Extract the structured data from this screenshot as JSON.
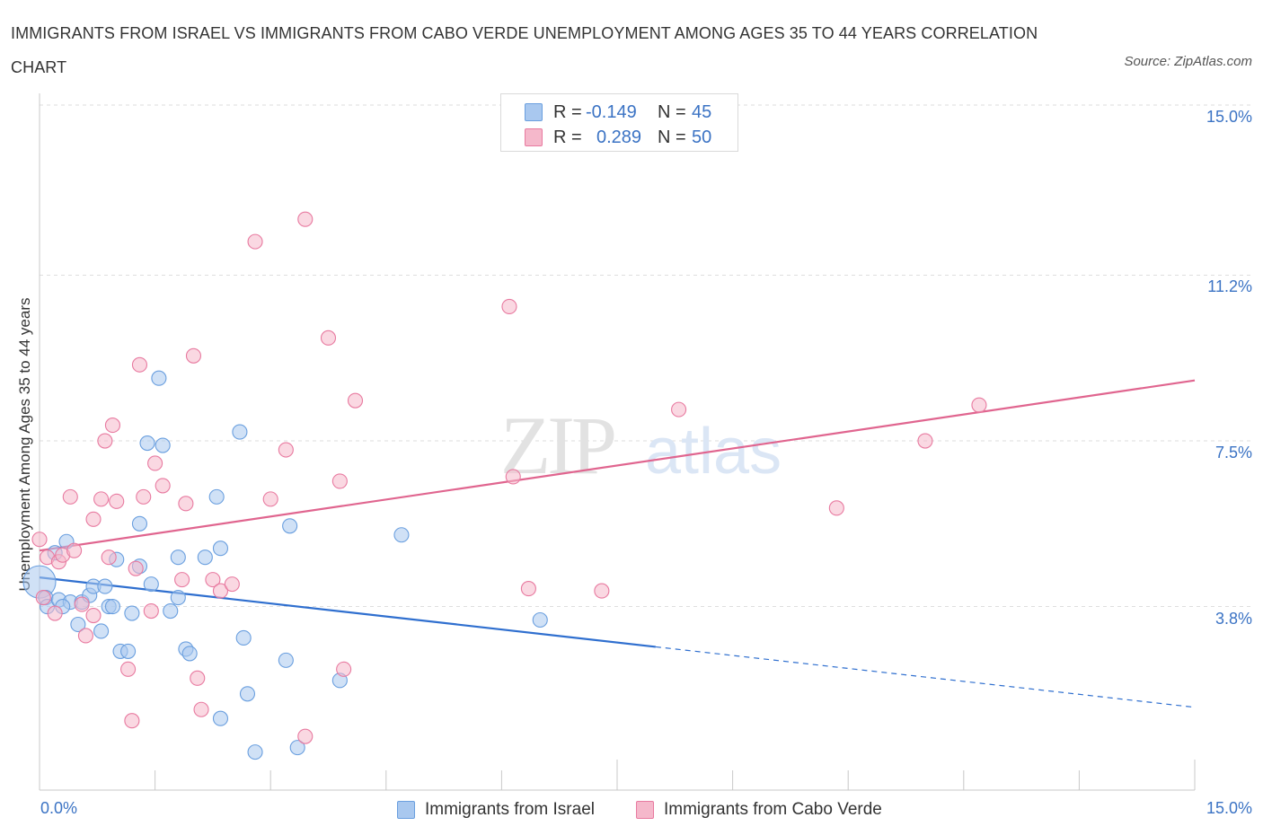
{
  "header": {
    "title": "IMMIGRANTS FROM ISRAEL VS IMMIGRANTS FROM CABO VERDE UNEMPLOYMENT AMONG AGES 35 TO 44 YEARS CORRELATION CHART",
    "source": "Source: ZipAtlas.com"
  },
  "legend": {
    "r_label": "R =",
    "n_label": "N =",
    "israel": {
      "r": "-0.149",
      "n": "45",
      "color": "#a9c8ef"
    },
    "caboverde": {
      "r": "0.289",
      "n": "50",
      "color": "#f5b8cb"
    }
  },
  "watermark": {
    "zip": "ZIP",
    "atlas": "atlas"
  },
  "bottom_legend": {
    "israel_label": "Immigrants from Israel",
    "caboverde_label": "Immigrants from Cabo Verde"
  },
  "chart_data": {
    "type": "scatter",
    "title": "IMMIGRANTS FROM ISRAEL VS IMMIGRANTS FROM CABO VERDE UNEMPLOYMENT AMONG AGES 35 TO 44 YEARS CORRELATION CHART",
    "xlabel": "",
    "ylabel": "Unemployment Among Ages 35 to 44 years",
    "xlim": [
      0,
      15
    ],
    "ylim": [
      0,
      15
    ],
    "x_tick_labels": {
      "min": "0.0%",
      "max": "15.0%"
    },
    "y_ticks": [
      {
        "value": 3.8,
        "label": "3.8%"
      },
      {
        "value": 7.5,
        "label": "7.5%"
      },
      {
        "value": 11.2,
        "label": "11.2%"
      },
      {
        "value": 15.0,
        "label": "15.0%"
      }
    ],
    "series": [
      {
        "name": "Immigrants from Israel",
        "color": "#6a9fdf",
        "fill": "#a9c8ef",
        "trend": {
          "x0": 0.0,
          "y0": 4.75,
          "x1": 8.0,
          "y1": 3.2,
          "dash_x1": 15.0,
          "dash_y1": 1.85
        },
        "points": [
          [
            0.0,
            4.65,
            3
          ],
          [
            0.08,
            4.3,
            1
          ],
          [
            0.1,
            4.1,
            1
          ],
          [
            0.25,
            4.25,
            1
          ],
          [
            0.35,
            5.55,
            1
          ],
          [
            0.4,
            4.2,
            1
          ],
          [
            0.5,
            3.7,
            1
          ],
          [
            0.55,
            4.2,
            1
          ],
          [
            0.65,
            4.35,
            1
          ],
          [
            0.7,
            4.55,
            1
          ],
          [
            0.8,
            3.55,
            1
          ],
          [
            0.85,
            4.55,
            1
          ],
          [
            0.9,
            4.1,
            1
          ],
          [
            0.95,
            4.1,
            1
          ],
          [
            1.0,
            5.15,
            1
          ],
          [
            1.05,
            3.1,
            1
          ],
          [
            1.15,
            3.1,
            1
          ],
          [
            1.2,
            3.95,
            1
          ],
          [
            1.3,
            5.0,
            1
          ],
          [
            1.3,
            5.95,
            1
          ],
          [
            1.4,
            7.75,
            1
          ],
          [
            1.45,
            4.6,
            1
          ],
          [
            1.6,
            7.7,
            1
          ],
          [
            1.55,
            9.2,
            1
          ],
          [
            1.7,
            4.0,
            1
          ],
          [
            1.8,
            5.2,
            1
          ],
          [
            1.8,
            4.3,
            1
          ],
          [
            1.9,
            3.15,
            1
          ],
          [
            1.95,
            3.05,
            1
          ],
          [
            2.15,
            5.2,
            1
          ],
          [
            2.3,
            6.55,
            1
          ],
          [
            2.35,
            1.6,
            1
          ],
          [
            2.35,
            5.4,
            1
          ],
          [
            2.6,
            8.0,
            1
          ],
          [
            2.65,
            3.4,
            1
          ],
          [
            2.7,
            2.15,
            1
          ],
          [
            2.8,
            0.85,
            1
          ],
          [
            3.2,
            2.9,
            1
          ],
          [
            3.25,
            5.9,
            1
          ],
          [
            3.35,
            0.95,
            1
          ],
          [
            3.9,
            2.45,
            1
          ],
          [
            4.7,
            5.7,
            1
          ],
          [
            6.5,
            3.8,
            1
          ],
          [
            0.2,
            5.3,
            1
          ],
          [
            0.3,
            4.1,
            1
          ]
        ]
      },
      {
        "name": "Immigrants from Cabo Verde",
        "color": "#e87aa0",
        "fill": "#f5b8cb",
        "trend": {
          "x0": 0.0,
          "y0": 5.35,
          "x1": 15.0,
          "y1": 9.15
        },
        "points": [
          [
            0.0,
            5.6,
            1
          ],
          [
            0.05,
            4.3,
            1
          ],
          [
            0.1,
            5.2,
            1
          ],
          [
            0.2,
            3.95,
            1
          ],
          [
            0.25,
            5.1,
            1
          ],
          [
            0.3,
            5.25,
            1
          ],
          [
            0.4,
            6.55,
            1
          ],
          [
            0.45,
            5.35,
            1
          ],
          [
            0.55,
            4.15,
            1
          ],
          [
            0.6,
            3.45,
            1
          ],
          [
            0.7,
            6.05,
            1
          ],
          [
            0.7,
            3.9,
            1
          ],
          [
            0.8,
            6.5,
            1
          ],
          [
            0.85,
            7.8,
            1
          ],
          [
            0.9,
            5.2,
            1
          ],
          [
            0.95,
            8.15,
            1
          ],
          [
            1.0,
            6.45,
            1
          ],
          [
            1.15,
            2.7,
            1
          ],
          [
            1.2,
            1.55,
            1
          ],
          [
            1.25,
            4.95,
            1
          ],
          [
            1.3,
            9.5,
            1
          ],
          [
            1.35,
            6.55,
            1
          ],
          [
            1.45,
            4.0,
            1
          ],
          [
            1.5,
            7.3,
            1
          ],
          [
            1.6,
            6.8,
            1
          ],
          [
            1.85,
            4.7,
            1
          ],
          [
            1.9,
            6.4,
            1
          ],
          [
            2.0,
            9.7,
            1
          ],
          [
            2.05,
            2.5,
            1
          ],
          [
            2.1,
            1.8,
            1
          ],
          [
            2.25,
            4.7,
            1
          ],
          [
            2.35,
            4.45,
            1
          ],
          [
            2.5,
            4.6,
            1
          ],
          [
            2.8,
            12.25,
            1
          ],
          [
            3.0,
            6.5,
            1
          ],
          [
            3.2,
            7.6,
            1
          ],
          [
            3.45,
            12.75,
            1
          ],
          [
            3.45,
            1.2,
            1
          ],
          [
            3.75,
            10.1,
            1
          ],
          [
            3.9,
            6.9,
            1
          ],
          [
            3.95,
            2.7,
            1
          ],
          [
            4.1,
            8.7,
            1
          ],
          [
            6.1,
            10.8,
            1
          ],
          [
            6.15,
            7.0,
            1
          ],
          [
            6.35,
            4.5,
            1
          ],
          [
            7.3,
            4.45,
            1
          ],
          [
            8.3,
            8.5,
            1
          ],
          [
            10.35,
            6.3,
            1
          ],
          [
            11.5,
            7.8,
            1
          ],
          [
            12.2,
            8.6,
            1
          ]
        ]
      }
    ]
  }
}
